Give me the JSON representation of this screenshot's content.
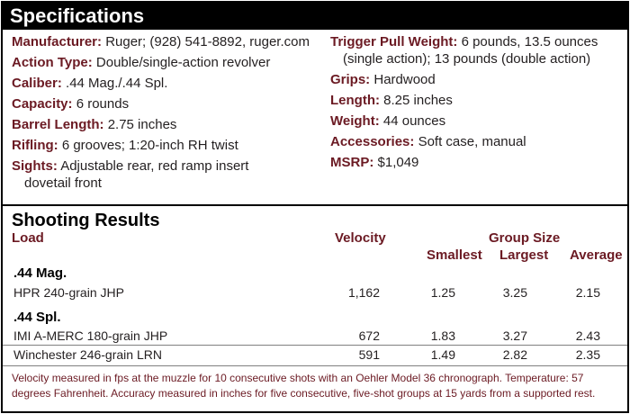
{
  "specifications": {
    "title": "Specifications",
    "left": [
      {
        "label": "Manufacturer:",
        "value": "Ruger; (928) 541-8892, ruger.com"
      },
      {
        "label": "Action Type:",
        "value": "Double/single-action revolver"
      },
      {
        "label": "Caliber:",
        "value": ".44 Mag./.44 Spl."
      },
      {
        "label": "Capacity:",
        "value": "6 rounds"
      },
      {
        "label": "Barrel Length:",
        "value": "2.75 inches"
      },
      {
        "label": "Rifling:",
        "value": "6 grooves; 1:20-inch RH twist"
      },
      {
        "label": "Sights:",
        "value": "Adjustable rear, red ramp insert",
        "value2": "dovetail front"
      }
    ],
    "right": [
      {
        "label": "Trigger Pull Weight:",
        "value": "6 pounds, 13.5 ounces",
        "value2": "(single action); 13 pounds (double action)"
      },
      {
        "label": "Grips:",
        "value": "Hardwood"
      },
      {
        "label": "Length:",
        "value": "8.25 inches"
      },
      {
        "label": "Weight:",
        "value": "44 ounces"
      },
      {
        "label": "Accessories:",
        "value": "Soft case, manual"
      },
      {
        "label": "MSRP:",
        "value": "$1,049"
      }
    ]
  },
  "results": {
    "title": "Shooting Results",
    "headers": {
      "load": "Load",
      "velocity": "Velocity",
      "group_size": "Group Size",
      "smallest": "Smallest",
      "largest": "Largest",
      "average": "Average"
    },
    "groups": [
      {
        "label": ".44 Mag.",
        "rows": [
          {
            "load": "HPR 240-grain JHP",
            "velocity": "1,162",
            "smallest": "1.25",
            "largest": "3.25",
            "average": "2.15"
          }
        ]
      },
      {
        "label": ".44 Spl.",
        "rows": [
          {
            "load": "IMI A-MERC 180-grain JHP",
            "velocity": "672",
            "smallest": "1.83",
            "largest": "3.27",
            "average": "2.43"
          },
          {
            "load": "Winchester 246-grain LRN",
            "velocity": "591",
            "smallest": "1.49",
            "largest": "2.82",
            "average": "2.35"
          }
        ]
      }
    ],
    "footnote": "Velocity measured in fps at the muzzle for 10 consecutive shots with an Oehler Model 36 chronograph. Temperature: 57 degrees Fahrenheit. Accuracy measured in inches for five consecutive, five-shot groups at 15 yards from a supported rest."
  },
  "colors": {
    "label": "#6b1a23",
    "header_bg": "#000000",
    "text": "#231f20"
  }
}
